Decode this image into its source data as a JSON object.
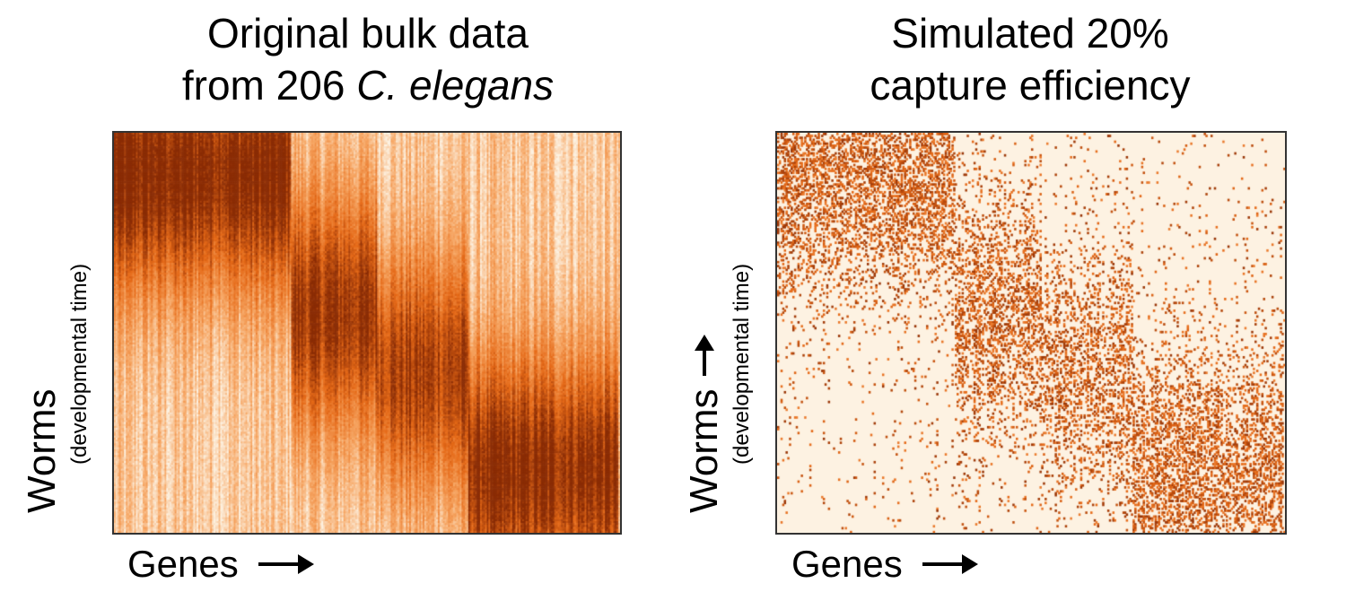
{
  "chart_data": [
    {
      "type": "heatmap",
      "title_line1": "Original bulk data",
      "title_line2_prefix": "from 206 ",
      "title_line2_italic": "C. elegans",
      "xlabel": "Genes",
      "ylabel_main": "Worms",
      "ylabel_sub": "(developmental time)",
      "ylabel_arrow": false,
      "rows": 206,
      "colormap": "Oranges",
      "colors": [
        "#fdf2e2",
        "#f7a866",
        "#e66a18",
        "#8a2c05"
      ],
      "description_blocks": [
        {
          "gene_range": [
            0.0,
            0.35
          ],
          "peak_time": 0.1,
          "intensity": 0.85
        },
        {
          "gene_range": [
            0.35,
            0.52
          ],
          "peak_time": 0.45,
          "intensity": 0.75
        },
        {
          "gene_range": [
            0.52,
            0.7
          ],
          "peak_time": 0.6,
          "intensity": 0.7
        },
        {
          "gene_range": [
            0.7,
            1.0
          ],
          "peak_time": 0.85,
          "intensity": 0.8
        }
      ]
    },
    {
      "type": "heatmap",
      "title_line1": "Simulated 20%",
      "title_line2_prefix": "capture efficiency",
      "title_line2_italic": "",
      "xlabel": "Genes",
      "ylabel_main": "Worms",
      "ylabel_sub": "(developmental time)",
      "ylabel_arrow": true,
      "rows": 206,
      "capture_efficiency": 0.2,
      "colormap": "Oranges",
      "colors": [
        "#fdf2e2",
        "#f7a866",
        "#e66a18",
        "#8a2c05"
      ]
    }
  ]
}
